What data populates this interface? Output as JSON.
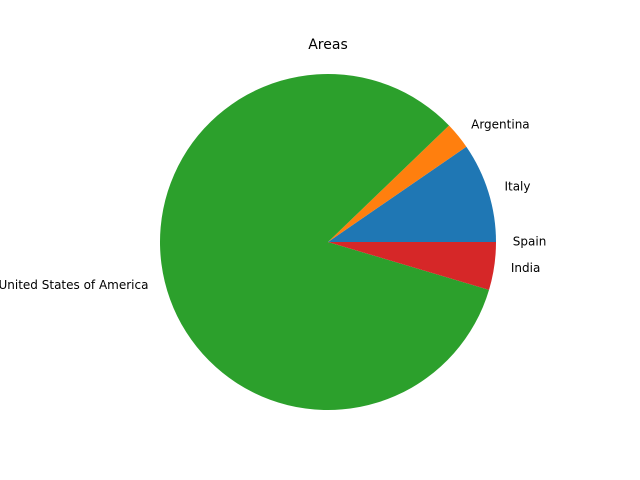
{
  "chart_data": {
    "type": "pie",
    "title": "Areas",
    "labels": [
      "Spain",
      "Italy",
      "Argentina",
      "United States of America",
      "India"
    ],
    "values": [
      0.0,
      9.6,
      2.6,
      83.2,
      4.6
    ],
    "colors": [
      "#1f77b4",
      "#1f77b4",
      "#ff7f0e",
      "#2ca02c",
      "#d62728"
    ]
  }
}
